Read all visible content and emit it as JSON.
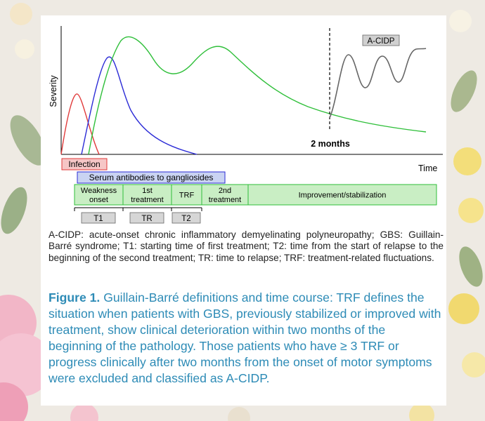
{
  "diagram": {
    "y_axis_label": "Severity",
    "x_axis_label": "Time",
    "two_months_label": "2 months",
    "acidp_badge": "A-CIDP",
    "infection_label": "Infection",
    "antibodies_label": "Serum antibodies to gangliosides",
    "phases": [
      {
        "line1": "Weakness",
        "line2": "onset"
      },
      {
        "line1": "1st",
        "line2": "treatment"
      },
      {
        "line1": "TRF",
        "line2": ""
      },
      {
        "line1": "2nd",
        "line2": "treatment"
      },
      {
        "line1": "Improvement/stabilization",
        "line2": ""
      }
    ],
    "intervals": [
      "T1",
      "TR",
      "T2"
    ],
    "colors": {
      "infection": "#e03a3a",
      "antibodies": "#2b2bd6",
      "gbs": "#2fbf3a",
      "acidp": "#666666",
      "infection_fill": "#f6c6c6",
      "antibodies_fill": "#c9d3f2",
      "phase_fill": "#c9eec4",
      "interval_fill": "#d6d6d6"
    }
  },
  "legend_text": "A-CIDP: acute-onset chronic inflammatory demyelinating polyneuropathy; GBS: Guillain-Barré syndrome; T1: starting time of first treatment; T2: time from the start of relapse to the beginning of the second treatment; TR: time to relapse; TRF: treatment-related fluctuations.",
  "caption": {
    "label": "Figure 1.",
    "text": " Guillain-Barré definitions and time course: TRF defines the situation when patients with GBS, previously stabilized or improved with treatment, show clinical deterioration within two months of the beginning of the pathology. Those patients who have ≥ 3 TRF or progress clinically after two months from the onset of motor symptoms were excluded and classified as A-CIDP."
  }
}
